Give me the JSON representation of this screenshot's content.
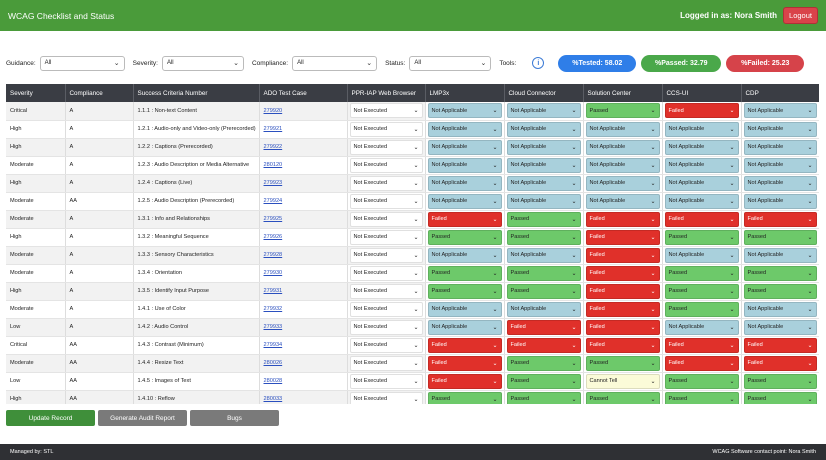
{
  "header": {
    "title": "WCAG Checklist and Status",
    "logged_in": "Logged in as: Nora Smith",
    "logout_label": "Logout"
  },
  "filters": {
    "guidance_label": "Guidance:",
    "guidance_value": "All",
    "severity_label": "Severity:",
    "severity_value": "All",
    "compliance_label": "Compliance:",
    "compliance_value": "All",
    "status_label": "Status:",
    "status_value": "All",
    "tools_label": "Tools:"
  },
  "stats": {
    "tested": "%Tested: 58.02",
    "passed": "%Passed: 32.79",
    "failed": "%Failed: 25.23",
    "tested_color": "#2f7ee8",
    "passed_color": "#4aa84a",
    "failed_color": "#d6434a"
  },
  "table": {
    "headers": [
      "Severity",
      "Compliance",
      "Success Criteria Number",
      "ADO Test Case",
      "PPR-IAP Web Browser",
      "LMP3x",
      "Cloud Connector",
      "Solution Center",
      "CCS-UI",
      "CDP"
    ],
    "rows": [
      {
        "sev": "Critical",
        "comp": "A",
        "crit": "1.1.1 : Non-text Content",
        "ado": "279920",
        "ppr": "Not Executed",
        "lmp": "Not Applicable",
        "cc": "Not Applicable",
        "sc": "Passed",
        "ccs": "Failed",
        "cdp": "Not Applicable"
      },
      {
        "sev": "High",
        "comp": "A",
        "crit": "1.2.1 : Audio-only and Video-only (Prerecorded)",
        "ado": "279921",
        "ppr": "Not Executed",
        "lmp": "Not Applicable",
        "cc": "Not Applicable",
        "sc": "Not Applicable",
        "ccs": "Not Applicable",
        "cdp": "Not Applicable"
      },
      {
        "sev": "High",
        "comp": "A",
        "crit": "1.2.2 : Captions (Prerecorded)",
        "ado": "279922",
        "ppr": "Not Executed",
        "lmp": "Not Applicable",
        "cc": "Not Applicable",
        "sc": "Not Applicable",
        "ccs": "Not Applicable",
        "cdp": "Not Applicable"
      },
      {
        "sev": "Moderate",
        "comp": "A",
        "crit": "1.2.3 : Audio Description or Media Alternative",
        "ado": "280120",
        "ppr": "Not Executed",
        "lmp": "Not Applicable",
        "cc": "Not Applicable",
        "sc": "Not Applicable",
        "ccs": "Not Applicable",
        "cdp": "Not Applicable"
      },
      {
        "sev": "High",
        "comp": "A",
        "crit": "1.2.4 : Captions (Live)",
        "ado": "279923",
        "ppr": "Not Executed",
        "lmp": "Not Applicable",
        "cc": "Not Applicable",
        "sc": "Not Applicable",
        "ccs": "Not Applicable",
        "cdp": "Not Applicable"
      },
      {
        "sev": "Moderate",
        "comp": "AA",
        "crit": "1.2.5 : Audio Description (Prerecorded)",
        "ado": "279924",
        "ppr": "Not Executed",
        "lmp": "Not Applicable",
        "cc": "Not Applicable",
        "sc": "Not Applicable",
        "ccs": "Not Applicable",
        "cdp": "Not Applicable"
      },
      {
        "sev": "Moderate",
        "comp": "A",
        "crit": "1.3.1 : Info and Relationships",
        "ado": "279925",
        "ppr": "Not Executed",
        "lmp": "Failed",
        "cc": "Passed",
        "sc": "Failed",
        "ccs": "Failed",
        "cdp": "Failed"
      },
      {
        "sev": "High",
        "comp": "A",
        "crit": "1.3.2 : Meaningful Sequence",
        "ado": "279926",
        "ppr": "Not Executed",
        "lmp": "Passed",
        "cc": "Passed",
        "sc": "Failed",
        "ccs": "Passed",
        "cdp": "Passed"
      },
      {
        "sev": "Moderate",
        "comp": "A",
        "crit": "1.3.3 : Sensory Characteristics",
        "ado": "279928",
        "ppr": "Not Executed",
        "lmp": "Not Applicable",
        "cc": "Not Applicable",
        "sc": "Failed",
        "ccs": "Not Applicable",
        "cdp": "Not Applicable"
      },
      {
        "sev": "Moderate",
        "comp": "A",
        "crit": "1.3.4 : Orientation",
        "ado": "279930",
        "ppr": "Not Executed",
        "lmp": "Passed",
        "cc": "Passed",
        "sc": "Failed",
        "ccs": "Passed",
        "cdp": "Passed"
      },
      {
        "sev": "High",
        "comp": "A",
        "crit": "1.3.5 : Identify Input Purpose",
        "ado": "279931",
        "ppr": "Not Executed",
        "lmp": "Passed",
        "cc": "Passed",
        "sc": "Failed",
        "ccs": "Passed",
        "cdp": "Passed"
      },
      {
        "sev": "Moderate",
        "comp": "A",
        "crit": "1.4.1 : Use of Color",
        "ado": "279932",
        "ppr": "Not Executed",
        "lmp": "Not Applicable",
        "cc": "Not Applicable",
        "sc": "Failed",
        "ccs": "Passed",
        "cdp": "Not Applicable"
      },
      {
        "sev": "Low",
        "comp": "A",
        "crit": "1.4.2 : Audio Control",
        "ado": "279933",
        "ppr": "Not Executed",
        "lmp": "Not Applicable",
        "cc": "Failed",
        "sc": "Failed",
        "ccs": "Not Applicable",
        "cdp": "Not Applicable"
      },
      {
        "sev": "Critical",
        "comp": "AA",
        "crit": "1.4.3 : Contrast (Minimum)",
        "ado": "279934",
        "ppr": "Not Executed",
        "lmp": "Failed",
        "cc": "Failed",
        "sc": "Failed",
        "ccs": "Failed",
        "cdp": "Failed"
      },
      {
        "sev": "Moderate",
        "comp": "AA",
        "crit": "1.4.4 : Resize Text",
        "ado": "280026",
        "ppr": "Not Executed",
        "lmp": "Failed",
        "cc": "Passed",
        "sc": "Passed",
        "ccs": "Failed",
        "cdp": "Failed"
      },
      {
        "sev": "Low",
        "comp": "AA",
        "crit": "1.4.5 : Images of Text",
        "ado": "280028",
        "ppr": "Not Executed",
        "lmp": "Failed",
        "cc": "Passed",
        "sc": "Cannot Tell",
        "ccs": "Passed",
        "cdp": "Passed"
      },
      {
        "sev": "High",
        "comp": "AA",
        "crit": "1.4.10 : Reflow",
        "ado": "280033",
        "ppr": "Not Executed",
        "lmp": "Passed",
        "cc": "Passed",
        "sc": "Passed",
        "ccs": "Passed",
        "cdp": "Passed"
      }
    ]
  },
  "actions": {
    "update_label": "Update Record",
    "audit_label": "Generate Audit Report",
    "bugs_label": "Bugs"
  },
  "footer": {
    "managed_by": "Managed by: STL",
    "contact": "WCAG Software contact point: Nora Smith"
  }
}
